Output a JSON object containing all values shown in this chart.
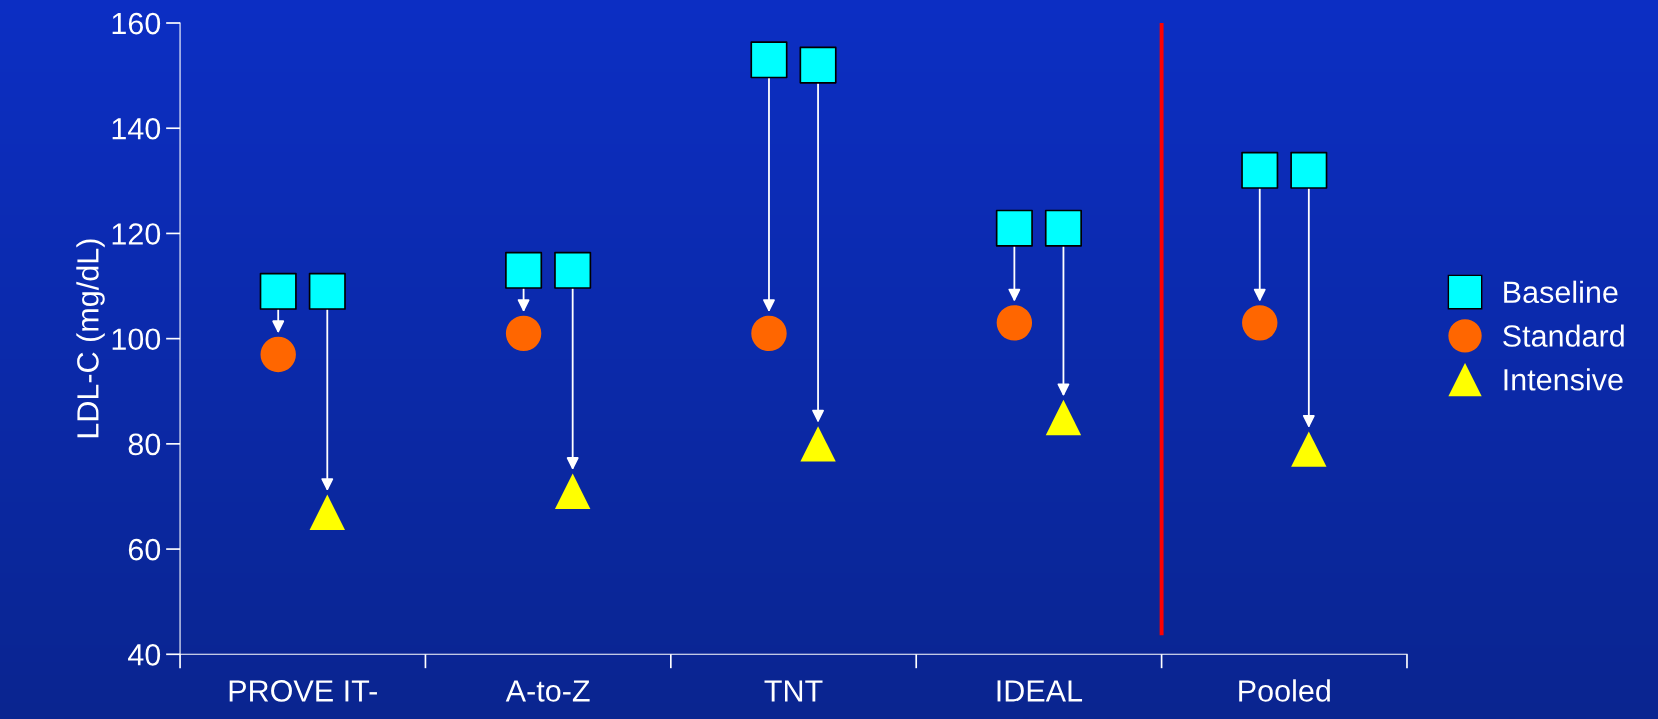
{
  "chart_data": {
    "type": "scatter",
    "ylabel": "LDL-C (mg/dL)",
    "categories": [
      "PROVE IT-",
      "A-to-Z",
      "TNT",
      "IDEAL",
      "Pooled"
    ],
    "series": [
      {
        "name": "Baseline",
        "color": "#00ffff",
        "marker": "square",
        "values": [
          109,
          113,
          153,
          121,
          132
        ]
      },
      {
        "name": "Standard",
        "color": "#ff6600",
        "marker": "circle",
        "values": [
          97,
          101,
          101,
          103,
          103
        ]
      },
      {
        "color": "#00ffff",
        "marker": "square",
        "values": [
          109,
          113,
          152,
          121,
          132
        ]
      },
      {
        "name": "Intensive",
        "color": "#ffff00",
        "marker": "triangle",
        "values": [
          67,
          71,
          80,
          85,
          79
        ]
      }
    ],
    "ylim": [
      40,
      160
    ],
    "yticks": [
      40,
      60,
      80,
      100,
      120,
      140,
      160
    ],
    "legend": "right",
    "grid": false
  }
}
